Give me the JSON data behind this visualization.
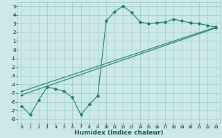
{
  "xlabel": "Humidex (Indice chaleur)",
  "background_color": "#cce8e8",
  "grid_color": "#99cccc",
  "line_color": "#1a7a6a",
  "xlim": [
    -0.5,
    23.5
  ],
  "ylim": [
    -8.5,
    5.5
  ],
  "yticks": [
    -8,
    -7,
    -6,
    -5,
    -4,
    -3,
    -2,
    -1,
    0,
    1,
    2,
    3,
    4,
    5
  ],
  "xticks": [
    0,
    1,
    2,
    3,
    4,
    5,
    6,
    7,
    8,
    9,
    10,
    11,
    12,
    13,
    14,
    15,
    16,
    17,
    18,
    19,
    20,
    21,
    22,
    23
  ],
  "series": [
    {
      "x": [
        0,
        1,
        2,
        3,
        4,
        5,
        6,
        7,
        8,
        9,
        10,
        11,
        12,
        13,
        14,
        15,
        16,
        17,
        18,
        19,
        20,
        21,
        22,
        23
      ],
      "y": [
        -6.5,
        -7.5,
        -5.8,
        -4.3,
        -4.5,
        -4.8,
        -5.5,
        -7.5,
        -6.3,
        -5.3,
        3.3,
        4.4,
        5.0,
        4.3,
        3.2,
        3.0,
        3.1,
        3.2,
        3.5,
        3.3,
        3.1,
        3.0,
        2.8,
        2.6
      ]
    },
    {
      "x": [
        0,
        23
      ],
      "y": [
        -4.8,
        2.6
      ]
    },
    {
      "x": [
        0,
        23
      ],
      "y": [
        -5.2,
        2.5
      ]
    }
  ]
}
